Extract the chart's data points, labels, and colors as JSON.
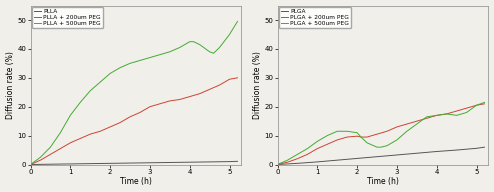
{
  "xlabel": "Time (h)",
  "ylabel": "Diffusion rate (%)",
  "xlim": [
    0,
    5.3
  ],
  "ylim_left": [
    0,
    55
  ],
  "ylim_right": [
    0,
    55
  ],
  "yticks_left": [
    0,
    10,
    20,
    30,
    40,
    50
  ],
  "yticks_right": [
    0,
    10,
    20,
    30,
    40,
    50
  ],
  "xticks": [
    0,
    1,
    2,
    3,
    4,
    5
  ],
  "left_legend": [
    "PLLA",
    "PLLA + 200um PEG",
    "PLLA + 500um PEG"
  ],
  "right_legend": [
    "PLGA",
    "PLGA + 200um PEG",
    "PLGA + 500um PEG"
  ],
  "color_dark": "#555555",
  "color_red": "#cc4433",
  "color_green": "#44aa33",
  "bg_color": "#f0efea",
  "plla_x": [
    0,
    0.5,
    1.0,
    1.5,
    2.0,
    2.5,
    3.0,
    3.5,
    4.0,
    4.5,
    5.0,
    5.2
  ],
  "plla_y": [
    0,
    0.1,
    0.2,
    0.3,
    0.4,
    0.5,
    0.6,
    0.7,
    0.8,
    0.9,
    1.0,
    1.1
  ],
  "plla200_x": [
    0,
    0.25,
    0.5,
    0.75,
    1.0,
    1.25,
    1.5,
    1.75,
    2.0,
    2.25,
    2.5,
    2.75,
    3.0,
    3.25,
    3.5,
    3.75,
    4.0,
    4.25,
    4.5,
    4.75,
    5.0,
    5.2
  ],
  "plla200_y": [
    0,
    1.5,
    3.5,
    5.5,
    7.5,
    9.0,
    10.5,
    11.5,
    13.0,
    14.5,
    16.5,
    18.0,
    20.0,
    21.0,
    22.0,
    22.5,
    23.5,
    24.5,
    26.0,
    27.5,
    29.5,
    30.0
  ],
  "plla500_x": [
    0,
    0.25,
    0.5,
    0.75,
    1.0,
    1.25,
    1.5,
    1.75,
    2.0,
    2.25,
    2.5,
    2.75,
    3.0,
    3.25,
    3.5,
    3.75,
    4.0,
    4.1,
    4.25,
    4.5,
    4.6,
    4.75,
    5.0,
    5.2
  ],
  "plla500_y": [
    0,
    2.5,
    6.0,
    11.0,
    17.0,
    21.5,
    25.5,
    28.5,
    31.5,
    33.5,
    35.0,
    36.0,
    37.0,
    38.0,
    39.0,
    40.5,
    42.5,
    42.5,
    41.5,
    39.0,
    38.5,
    40.5,
    45.0,
    49.5
  ],
  "plga_x": [
    0,
    0.5,
    1.0,
    1.5,
    2.0,
    2.5,
    3.0,
    3.5,
    4.0,
    4.5,
    5.0,
    5.2
  ],
  "plga_y": [
    0,
    0.4,
    0.9,
    1.5,
    2.1,
    2.7,
    3.3,
    3.9,
    4.5,
    5.0,
    5.6,
    6.0
  ],
  "plga200_x": [
    0,
    0.25,
    0.5,
    0.75,
    1.0,
    1.25,
    1.5,
    1.75,
    2.0,
    2.1,
    2.25,
    2.5,
    2.75,
    3.0,
    3.25,
    3.5,
    3.75,
    4.0,
    4.25,
    4.5,
    4.75,
    5.0,
    5.2
  ],
  "plga200_y": [
    0,
    0.8,
    2.0,
    3.5,
    5.5,
    7.0,
    8.5,
    9.5,
    9.8,
    9.5,
    9.5,
    10.5,
    11.5,
    13.0,
    14.0,
    15.0,
    16.0,
    17.0,
    17.5,
    18.5,
    19.5,
    20.5,
    21.0
  ],
  "plga500_x": [
    0,
    0.25,
    0.5,
    0.75,
    1.0,
    1.25,
    1.5,
    1.75,
    2.0,
    2.1,
    2.25,
    2.5,
    2.6,
    2.75,
    3.0,
    3.25,
    3.5,
    3.75,
    4.0,
    4.25,
    4.5,
    4.75,
    5.0,
    5.2
  ],
  "plga500_y": [
    0,
    1.5,
    3.5,
    5.5,
    8.0,
    10.0,
    11.5,
    11.5,
    11.0,
    9.5,
    7.5,
    6.0,
    6.0,
    6.5,
    8.5,
    11.5,
    14.0,
    16.5,
    17.0,
    17.5,
    17.0,
    18.0,
    20.5,
    21.5
  ]
}
